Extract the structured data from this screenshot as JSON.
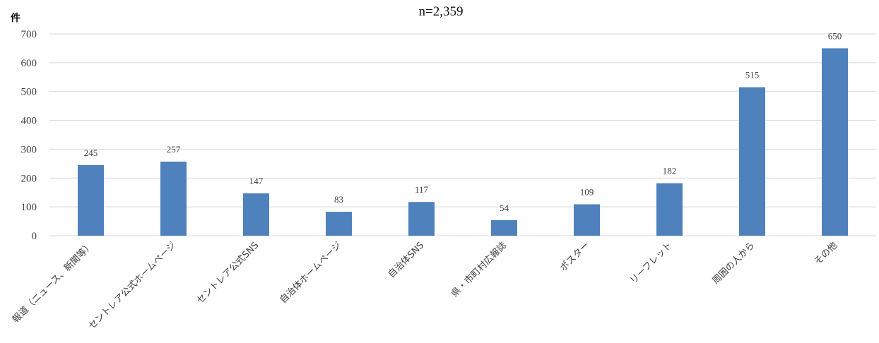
{
  "chart_data": {
    "type": "bar",
    "title": "n=2,359",
    "ylabel": "件",
    "xlabel": "",
    "ylim": [
      0,
      700
    ],
    "yticks": [
      0,
      100,
      200,
      300,
      400,
      500,
      600,
      700
    ],
    "grid": true,
    "legend": "none",
    "bar_color": "#4F81BD",
    "categories": [
      "報道（ニュース、新聞等）",
      "セントレア公式ホームページ",
      "セントレア公式SNS",
      "自治体ホームページ",
      "自治体SNS",
      "県・市町村広報誌",
      "ポスター",
      "リーフレット",
      "周囲の人から",
      "その他"
    ],
    "values": [
      245,
      257,
      147,
      83,
      117,
      54,
      109,
      182,
      515,
      650
    ]
  }
}
